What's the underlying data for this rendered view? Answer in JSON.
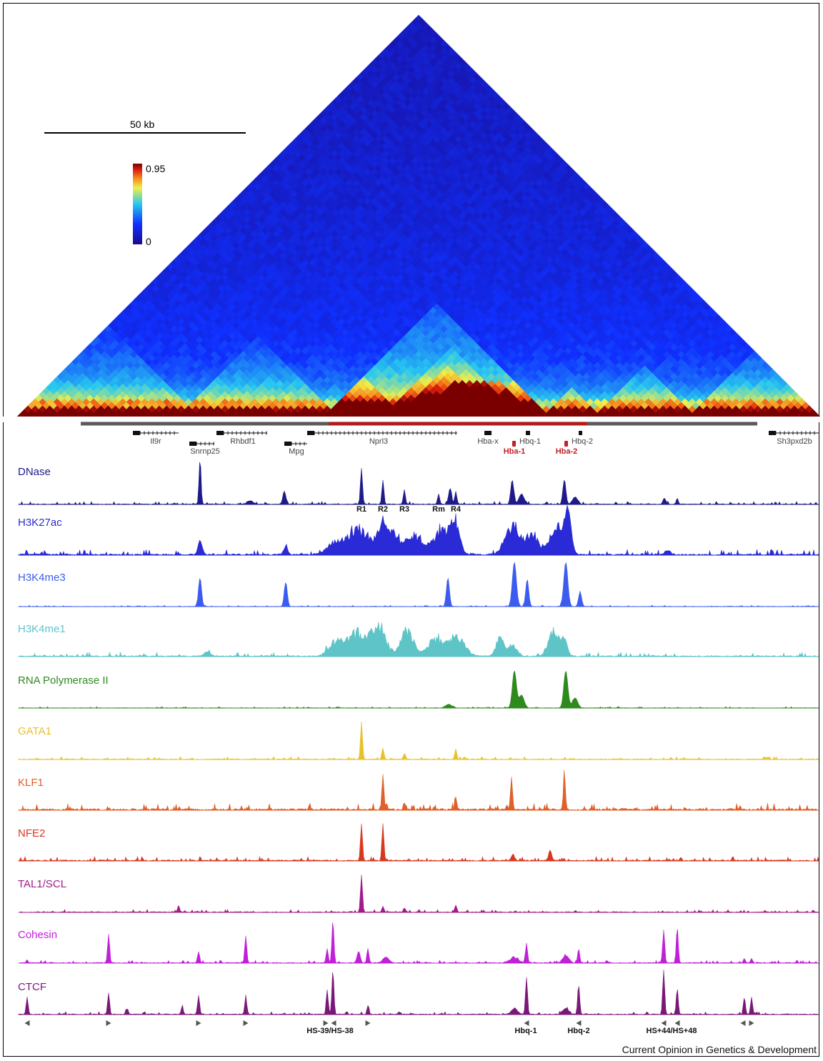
{
  "scale_bar": {
    "label": "50 kb"
  },
  "colorbar": {
    "max": "0.95",
    "min": "0",
    "colors": [
      "#1a0a8c",
      "#1030ff",
      "#28c8f0",
      "#f0f04a",
      "#f58a1c",
      "#e02010",
      "#7a0000"
    ]
  },
  "genes": [
    {
      "label": "Il9r",
      "red": false
    },
    {
      "label": "Snrnp25",
      "red": false
    },
    {
      "label": "Rhbdf1",
      "red": false
    },
    {
      "label": "Mpg",
      "red": false
    },
    {
      "label": "Nprl3",
      "red": false
    },
    {
      "label": "Hba-x",
      "red": false
    },
    {
      "label": "Hbq-1",
      "red": false
    },
    {
      "label": "Hbq-2",
      "red": false
    },
    {
      "label": "Hba-1",
      "red": true
    },
    {
      "label": "Hba-2",
      "red": true
    },
    {
      "label": "Sh3pxd2b",
      "red": false
    }
  ],
  "dnase_peaks": [
    "R1",
    "R2",
    "R3",
    "Rm",
    "R4"
  ],
  "tracks": [
    {
      "name": "DNase",
      "color": "#1f1a8a"
    },
    {
      "name": "H3K27ac",
      "color": "#2a2ad6"
    },
    {
      "name": "H3K4me3",
      "color": "#3c5cf0"
    },
    {
      "name": "H3K4me1",
      "color": "#5fc4c8"
    },
    {
      "name": "RNA Polymerase II",
      "color": "#2f8a1e"
    },
    {
      "name": "GATA1",
      "color": "#e8c12a"
    },
    {
      "name": "KLF1",
      "color": "#e0602a"
    },
    {
      "name": "NFE2",
      "color": "#d83820"
    },
    {
      "name": "TAL1/SCL",
      "color": "#a21a8a"
    },
    {
      "name": "Cohesin",
      "color": "#c020d8"
    },
    {
      "name": "CTCF",
      "color": "#7a1878"
    }
  ],
  "ctcf_sites": [
    "HS-39/HS-38",
    "Hbq-1",
    "Hbq-2",
    "HS+44/HS+48"
  ],
  "credit": "Current Opinion in Genetics & Development"
}
